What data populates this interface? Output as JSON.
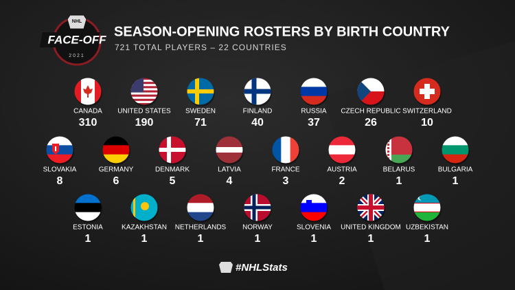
{
  "header": {
    "title": "SEASON-OPENING ROSTERS BY BIRTH COUNTRY",
    "subtitle": "721 TOTAL PLAYERS – 22 COUNTRIES"
  },
  "logo": {
    "shield": "NHL",
    "text": "FACE-OFF",
    "year": "2021"
  },
  "countries": [
    {
      "name": "CANADA",
      "count": 310
    },
    {
      "name": "UNITED STATES",
      "count": 190
    },
    {
      "name": "SWEDEN",
      "count": 71
    },
    {
      "name": "FINLAND",
      "count": 40
    },
    {
      "name": "RUSSIA",
      "count": 37
    },
    {
      "name": "CZECH REPUBLIC",
      "count": 26
    },
    {
      "name": "SWITZERLAND",
      "count": 10
    },
    {
      "name": "SLOVAKIA",
      "count": 8
    },
    {
      "name": "GERMANY",
      "count": 6
    },
    {
      "name": "DENMARK",
      "count": 5
    },
    {
      "name": "LATVIA",
      "count": 4
    },
    {
      "name": "FRANCE",
      "count": 3
    },
    {
      "name": "AUSTRIA",
      "count": 2
    },
    {
      "name": "BELARUS",
      "count": 1
    },
    {
      "name": "BULGARIA",
      "count": 1
    },
    {
      "name": "ESTONIA",
      "count": 1
    },
    {
      "name": "KAZAKHSTAN",
      "count": 1
    },
    {
      "name": "NETHERLANDS",
      "count": 1
    },
    {
      "name": "NORWAY",
      "count": 1
    },
    {
      "name": "SLOVENIA",
      "count": 1
    },
    {
      "name": "UNITED KINGDOM",
      "count": 1
    },
    {
      "name": "UZBEKISTAN",
      "count": 1
    }
  ],
  "footer": {
    "hashtag": "#NHLStats"
  }
}
